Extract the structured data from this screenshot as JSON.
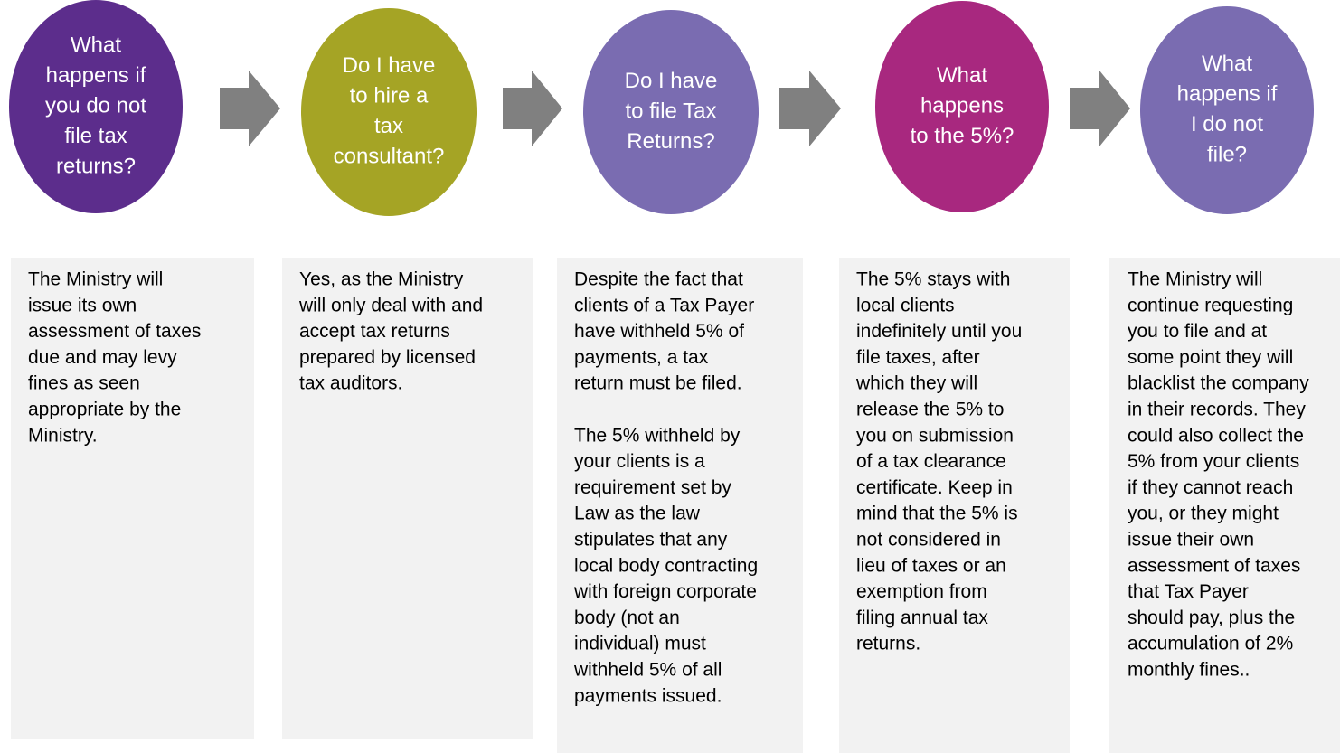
{
  "steps": [
    {
      "question": [
        "What",
        "happens if",
        "you do not",
        "file tax",
        "returns?"
      ],
      "answer": [
        [
          "The Ministry will",
          "issue its own",
          "assessment of taxes",
          "due and may levy",
          "fines as seen",
          "appropriate by the",
          "Ministry."
        ]
      ]
    },
    {
      "question": [
        "Do I have",
        "to hire a",
        "tax",
        "consultant?"
      ],
      "answer": [
        [
          "Yes, as the Ministry",
          "will only deal with and",
          "accept tax returns",
          "prepared by licensed",
          "tax auditors."
        ]
      ]
    },
    {
      "question": [
        "Do I have",
        "to file Tax",
        "Returns?"
      ],
      "answer": [
        [
          "Despite the fact that",
          "clients of a Tax Payer",
          "have withheld 5% of",
          "payments, a tax",
          "return  must be filed."
        ],
        [
          "The 5% withheld by",
          "your clients is a",
          "requirement set by",
          "Law as the law",
          "stipulates that any",
          "local body contracting",
          "with foreign corporate",
          "body (not an",
          "individual) must",
          "withheld 5% of all",
          "payments issued."
        ]
      ]
    },
    {
      "question": [
        "What",
        "happens",
        "to the 5%?"
      ],
      "answer": [
        [
          "The 5% stays with",
          "local clients",
          "indefinitely until you",
          "file taxes, after",
          "which they will",
          "release the 5% to",
          "you on submission",
          "of a tax clearance",
          "certificate.  Keep in",
          "mind that the 5% is",
          "not considered in",
          "lieu of taxes or an",
          "exemption from",
          "filing annual tax",
          "returns."
        ]
      ]
    },
    {
      "question": [
        "What",
        "happens if",
        "I do not",
        "file?"
      ],
      "answer": [
        [
          "The Ministry will",
          "continue requesting",
          "you to file and  at",
          "some point they will",
          "blacklist the company",
          "in their records. They",
          "could also collect the",
          "5% from your clients",
          "if they cannot reach",
          "you, or they might",
          "issue their own",
          "assessment of taxes",
          "that Tax Payer",
          "should pay, plus the",
          "accumulation of 2%",
          "monthly fines.."
        ]
      ]
    }
  ]
}
